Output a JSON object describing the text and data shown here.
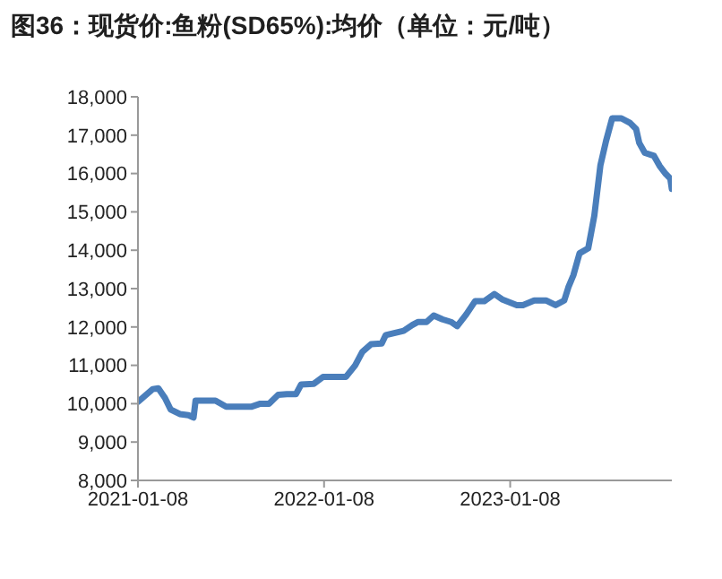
{
  "chart_data": {
    "type": "line",
    "title": "图36：现货价:鱼粉(SD65%):均价（单位：元/吨）",
    "x": [
      "2021-01-08",
      "2021-02-06",
      "2021-02-17",
      "2021-03-02",
      "2021-03-13",
      "2021-03-31",
      "2021-04-17",
      "2021-04-27",
      "2021-05-01",
      "2021-06-09",
      "2021-06-30",
      "2021-08-18",
      "2021-09-05",
      "2021-09-22",
      "2021-10-10",
      "2021-10-27",
      "2021-11-14",
      "2021-11-24",
      "2021-12-19",
      "2022-01-06",
      "2022-02-20",
      "2022-03-10",
      "2022-03-24",
      "2022-04-10",
      "2022-05-01",
      "2022-05-09",
      "2022-06-13",
      "2022-06-30",
      "2022-07-11",
      "2022-07-28",
      "2022-08-11",
      "2022-08-28",
      "2022-09-14",
      "2022-09-26",
      "2022-10-14",
      "2022-10-31",
      "2022-11-18",
      "2022-12-08",
      "2022-12-23",
      "2023-01-21",
      "2023-02-02",
      "2023-02-24",
      "2023-03-20",
      "2023-04-07",
      "2023-04-24",
      "2023-05-02",
      "2023-05-12",
      "2023-05-24",
      "2023-06-10",
      "2023-06-22",
      "2023-07-04",
      "2023-07-15",
      "2023-07-27",
      "2023-08-14",
      "2023-08-31",
      "2023-09-12",
      "2023-09-18",
      "2023-09-29",
      "2023-10-17",
      "2023-10-28",
      "2023-11-09",
      "2023-11-18",
      "2023-11-21"
    ],
    "series": [
      {
        "color": "#4a7ebb",
        "values": [
          10050,
          10380,
          10400,
          10150,
          9850,
          9730,
          9700,
          9640,
          10080,
          10080,
          9920,
          9920,
          10000,
          10000,
          10230,
          10250,
          10250,
          10500,
          10520,
          10700,
          10700,
          11000,
          11350,
          11550,
          11570,
          11790,
          11900,
          12050,
          12130,
          12130,
          12300,
          12200,
          12130,
          12020,
          12330,
          12670,
          12670,
          12860,
          12720,
          12570,
          12570,
          12690,
          12690,
          12570,
          12690,
          13030,
          13350,
          13920,
          14050,
          14900,
          16220,
          16850,
          17440,
          17440,
          17320,
          17160,
          16800,
          16540,
          16460,
          16200,
          15990,
          15870,
          15600
        ]
      }
    ],
    "xlim": [
      "2021-01-08",
      "2023-11-21"
    ],
    "xticks": [
      "2021-01-08",
      "2022-01-08",
      "2023-01-08"
    ],
    "ylim": [
      8000,
      18000
    ],
    "yticks": [
      {
        "value": 8000,
        "label": "8,000"
      },
      {
        "value": 9000,
        "label": "9,000"
      },
      {
        "value": 10000,
        "label": "10,000"
      },
      {
        "value": 11000,
        "label": "11,000"
      },
      {
        "value": 12000,
        "label": "12,000"
      },
      {
        "value": 13000,
        "label": "13,000"
      },
      {
        "value": 14000,
        "label": "14,000"
      },
      {
        "value": 15000,
        "label": "15,000"
      },
      {
        "value": 16000,
        "label": "16,000"
      },
      {
        "value": 17000,
        "label": "17,000"
      },
      {
        "value": 18000,
        "label": "18,000"
      }
    ],
    "grid": false,
    "legend": false,
    "marker": "none",
    "line_style": "solid"
  }
}
